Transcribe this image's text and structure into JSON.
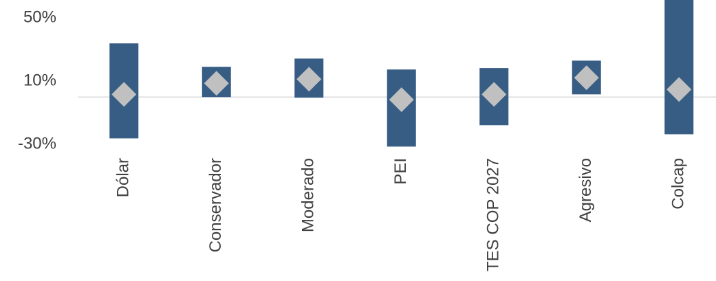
{
  "chart_data": {
    "type": "floating-bar",
    "categories": [
      "Dólar",
      "Conservador",
      "Moderado",
      "PEI",
      "TES COP 2027",
      "Agresivo",
      "Colcap"
    ],
    "low": [
      -26.1,
      0,
      -0.4,
      -31.3,
      -17.8,
      1.7,
      -23.5
    ],
    "high": [
      33.9,
      19.1,
      24.3,
      17.4,
      18.3,
      23,
      61.3
    ],
    "values": [
      1.7,
      8.7,
      11.3,
      -1.7,
      1.7,
      12.2,
      4.8
    ],
    "bar_color": "#375d84",
    "marker_color": "#c0c0c0",
    "ylim": [
      -32,
      61.3
    ],
    "yticks": [
      {
        "value": -30,
        "label": "-30%"
      },
      {
        "value": 10,
        "label": "10%"
      },
      {
        "value": 50,
        "label": "50%"
      }
    ]
  }
}
